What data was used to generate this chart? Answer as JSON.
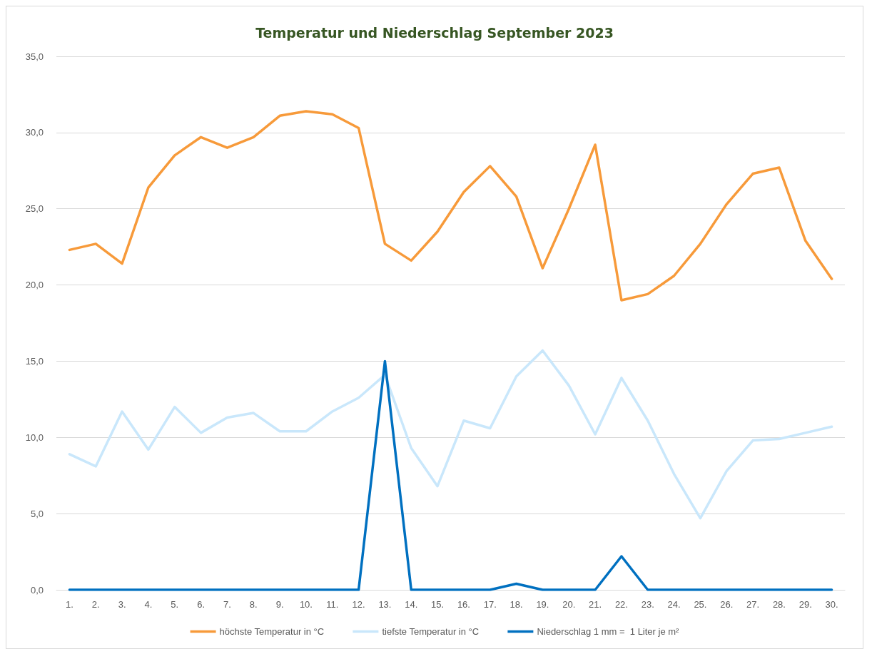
{
  "chart_data": {
    "type": "line",
    "title": "Temperatur und Niederschlag September 2023",
    "categories": [
      "1.",
      "2.",
      "3.",
      "4.",
      "5.",
      "6.",
      "7.",
      "8.",
      "9.",
      "10.",
      "11.",
      "12.",
      "13.",
      "14.",
      "15.",
      "16.",
      "17.",
      "18.",
      "19.",
      "20.",
      "21.",
      "22.",
      "23.",
      "24.",
      "25.",
      "26.",
      "27.",
      "28.",
      "29.",
      "30."
    ],
    "series": [
      {
        "name": "höchste Temperatur in °C",
        "color": "#f79a3a",
        "values": [
          22.3,
          22.7,
          21.4,
          26.4,
          28.5,
          29.7,
          29.0,
          29.7,
          31.1,
          31.4,
          31.2,
          30.3,
          22.7,
          21.6,
          23.5,
          26.1,
          27.8,
          25.8,
          21.1,
          25.0,
          29.2,
          19.0,
          19.4,
          20.6,
          22.7,
          25.3,
          27.3,
          27.7,
          22.9,
          20.4
        ]
      },
      {
        "name": "tiefste Temperatur in °C",
        "color": "#c9e7fb",
        "values": [
          8.9,
          8.1,
          11.7,
          9.2,
          12.0,
          10.3,
          11.3,
          11.6,
          10.4,
          10.4,
          11.7,
          12.6,
          14.1,
          9.3,
          6.8,
          11.1,
          10.6,
          14.0,
          15.7,
          13.4,
          10.2,
          13.9,
          11.1,
          7.6,
          4.7,
          7.8,
          9.8,
          9.9,
          10.3,
          10.7
        ]
      },
      {
        "name": "Niederschlag 1 mm =  1 Liter je m²",
        "color": "#0070c0",
        "values": [
          0,
          0,
          0,
          0,
          0,
          0,
          0,
          0,
          0,
          0,
          0,
          0,
          15.0,
          0,
          0,
          0,
          0,
          0.4,
          0,
          0,
          0,
          2.2,
          0,
          0,
          0,
          0,
          0,
          0,
          0,
          0
        ]
      }
    ],
    "ylim": [
      0,
      35
    ],
    "yticks": [
      {
        "value": 0,
        "label": "0,0"
      },
      {
        "value": 5,
        "label": "5,0"
      },
      {
        "value": 10,
        "label": "10,0"
      },
      {
        "value": 15,
        "label": "15,0"
      },
      {
        "value": 20,
        "label": "20,0"
      },
      {
        "value": 25,
        "label": "25,0"
      },
      {
        "value": 30,
        "label": "30,0"
      },
      {
        "value": 35,
        "label": "35,0"
      }
    ],
    "grid": "y",
    "legend": "bottom",
    "marker": "none",
    "line_style": "solid"
  }
}
